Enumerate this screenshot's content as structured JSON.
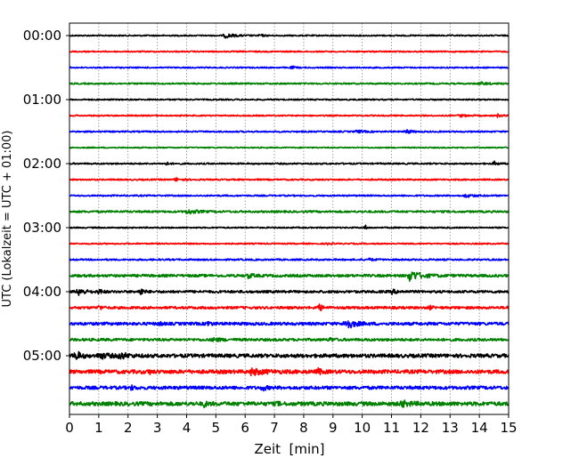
{
  "chart_data": {
    "type": "line",
    "subtype": "helicorder",
    "xlabel": "Zeit  [min]",
    "ylabel": "UTC (Lokalzeit = UTC + 01:00)",
    "xlim": [
      0,
      15
    ],
    "x_ticks": [
      "0",
      "1",
      "2",
      "3",
      "4",
      "5",
      "6",
      "7",
      "8",
      "9",
      "10",
      "11",
      "12",
      "13",
      "14",
      "15"
    ],
    "y_tick_labels": [
      {
        "trace": 0,
        "label": "00:00"
      },
      {
        "trace": 4,
        "label": "01:00"
      },
      {
        "trace": 8,
        "label": "02:00"
      },
      {
        "trace": 12,
        "label": "03:00"
      },
      {
        "trace": 16,
        "label": "04:00"
      },
      {
        "trace": 20,
        "label": "05:00"
      }
    ],
    "grid": "vertical dotted, every minute",
    "colors": [
      "#000000",
      "#ff0000",
      "#0000ff",
      "#008000"
    ],
    "trace_minutes": 15,
    "traces": [
      {
        "noise": 0.8,
        "events": [
          [
            5.3,
            2.5,
            0.3
          ],
          [
            6.5,
            1.5,
            0.1
          ]
        ]
      },
      {
        "noise": 0.8,
        "events": []
      },
      {
        "noise": 0.8,
        "events": [
          [
            7.6,
            1.5,
            0.1
          ]
        ]
      },
      {
        "noise": 0.9,
        "events": [
          [
            14.0,
            1.5,
            0.3
          ]
        ]
      },
      {
        "noise": 0.8,
        "events": []
      },
      {
        "noise": 0.8,
        "events": [
          [
            13.3,
            1.5,
            0.2
          ],
          [
            14.6,
            2.0,
            0.1
          ]
        ]
      },
      {
        "noise": 0.9,
        "events": [
          [
            9.8,
            1.5,
            0.2
          ],
          [
            11.5,
            2.5,
            0.15
          ]
        ]
      },
      {
        "noise": 0.7,
        "events": []
      },
      {
        "noise": 0.9,
        "events": [
          [
            3.3,
            1.5,
            0.1
          ],
          [
            14.5,
            2.5,
            0.1
          ]
        ]
      },
      {
        "noise": 0.9,
        "events": [
          [
            3.6,
            2.0,
            0.2
          ]
        ]
      },
      {
        "noise": 0.9,
        "events": [
          [
            13.5,
            1.8,
            0.3
          ]
        ]
      },
      {
        "noise": 1.2,
        "events": [
          [
            4.0,
            2.5,
            0.3
          ]
        ]
      },
      {
        "noise": 0.8,
        "events": [
          [
            10.1,
            3.0,
            0.05
          ]
        ]
      },
      {
        "noise": 0.8,
        "events": [
          [
            8.8,
            1.2,
            0.1
          ]
        ]
      },
      {
        "noise": 1.0,
        "events": [
          [
            10.2,
            1.2,
            0.2
          ]
        ]
      },
      {
        "noise": 1.6,
        "events": [
          [
            11.6,
            6.0,
            0.35
          ],
          [
            6.1,
            2.5,
            0.15
          ]
        ]
      },
      {
        "noise": 1.5,
        "events": [
          [
            0.3,
            4.0,
            0.2
          ],
          [
            1.0,
            3.0,
            0.1
          ],
          [
            2.4,
            5.0,
            0.1
          ],
          [
            11.0,
            2.0,
            0.2
          ]
        ]
      },
      {
        "noise": 1.5,
        "events": [
          [
            1.0,
            2.5,
            0.1
          ],
          [
            8.5,
            5.0,
            0.1
          ],
          [
            12.3,
            2.0,
            0.1
          ],
          [
            15.0,
            2.5,
            0.05
          ]
        ]
      },
      {
        "noise": 1.8,
        "events": [
          [
            9.4,
            7.0,
            0.25
          ],
          [
            4.7,
            3.0,
            0.1
          ],
          [
            3.1,
            2.0,
            0.05
          ]
        ]
      },
      {
        "noise": 1.6,
        "events": [
          [
            4.9,
            2.0,
            0.2
          ],
          [
            8.9,
            2.0,
            0.1
          ]
        ]
      },
      {
        "noise": 2.2,
        "events": [
          [
            0.2,
            6.0,
            0.15
          ],
          [
            1.7,
            4.0,
            0.2
          ],
          [
            1.0,
            3.0,
            0.3
          ]
        ]
      },
      {
        "noise": 2.3,
        "events": [
          [
            6.2,
            3.0,
            0.4
          ],
          [
            2.7,
            3.0,
            0.05
          ],
          [
            8.5,
            3.0,
            0.1
          ]
        ]
      },
      {
        "noise": 2.0,
        "events": [
          [
            6.6,
            3.0,
            0.1
          ],
          [
            2.1,
            2.0,
            0.1
          ]
        ]
      },
      {
        "noise": 2.4,
        "events": [
          [
            11.3,
            3.0,
            0.3
          ],
          [
            4.6,
            2.5,
            0.1
          ],
          [
            7.1,
            2.5,
            0.05
          ]
        ]
      }
    ]
  }
}
